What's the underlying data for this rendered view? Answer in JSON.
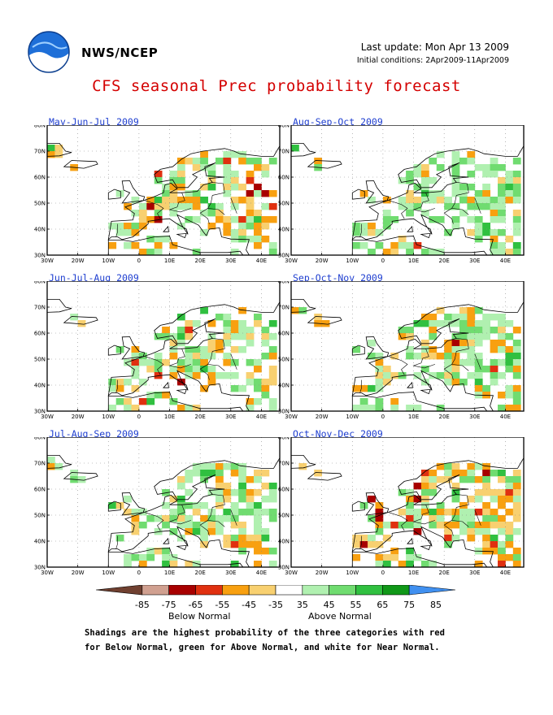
{
  "header": {
    "org": "NWS/NCEP",
    "last_update": "Last update: Mon Apr 13 2009",
    "initial_conditions": "Initial conditions: 2Apr2009-11Apr2009",
    "title": "CFS seasonal Prec probability forecast"
  },
  "axes": {
    "lat_labels": [
      "80N",
      "70N",
      "60N",
      "50N",
      "40N",
      "30N"
    ],
    "lon_labels": [
      "30W",
      "20W",
      "10W",
      "0",
      "10E",
      "20E",
      "30E",
      "40E"
    ]
  },
  "panels": [
    {
      "title": "May-Jun-Jul 2009",
      "seed": 11,
      "warm": 0.35,
      "wet": 0.3,
      "strong": 0.1
    },
    {
      "title": "Aug-Sep-Oct 2009",
      "seed": 23,
      "warm": 0.12,
      "wet": 0.45,
      "strong": 0.05
    },
    {
      "title": "Jun-Jul-Aug 2009",
      "seed": 37,
      "warm": 0.25,
      "wet": 0.35,
      "strong": 0.08
    },
    {
      "title": "Sep-Oct-Nov 2009",
      "seed": 41,
      "warm": 0.28,
      "wet": 0.4,
      "strong": 0.06
    },
    {
      "title": "Jul-Aug-Sep 2009",
      "seed": 53,
      "warm": 0.22,
      "wet": 0.38,
      "strong": 0.08
    },
    {
      "title": "Oct-Nov-Dec 2009",
      "seed": 67,
      "warm": 0.4,
      "wet": 0.3,
      "strong": 0.1
    }
  ],
  "colorbar": {
    "labels": [
      "-85",
      "-75",
      "-65",
      "-55",
      "-45",
      "-35",
      "35",
      "45",
      "55",
      "65",
      "75",
      "85"
    ],
    "colors": [
      "#704030",
      "#d0a090",
      "#a80000",
      "#e03010",
      "#f8a010",
      "#f8d070",
      "#ffffff",
      "#b0f0b0",
      "#70dc70",
      "#30c040",
      "#109818",
      "#4090f0"
    ],
    "below_label": "Below Normal",
    "above_label": "Above Normal"
  },
  "note": {
    "line1": "Shadings are the highest probability of the three categories with red",
    "line2": "for Below Normal, green for Above Normal, and white for Near Normal."
  }
}
